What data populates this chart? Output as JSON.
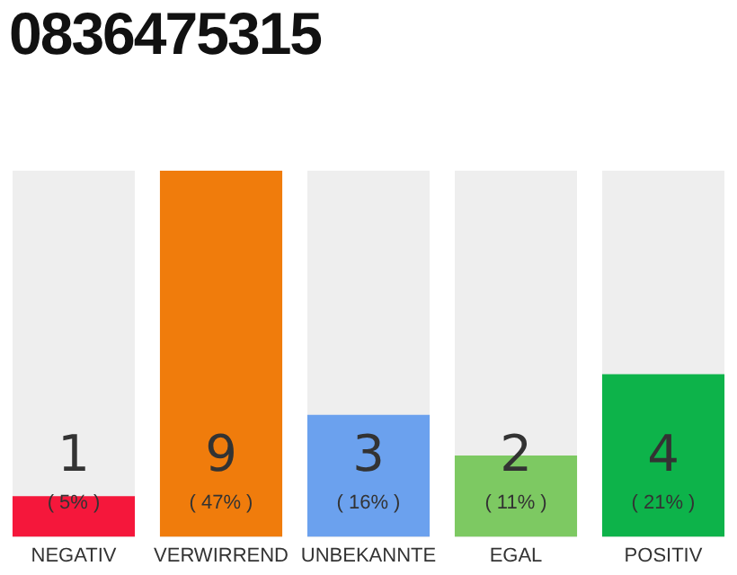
{
  "chart_data": {
    "type": "bar",
    "title": "0836475315",
    "categories": [
      "NEGATIV",
      "VERWIRREND",
      "UNBEKANNTE",
      "EGAL",
      "POSITIV"
    ],
    "values": [
      1,
      9,
      3,
      2,
      4
    ],
    "colors": [
      "#f5173b",
      "#f07c0c",
      "#6ba1ee",
      "#7dc962",
      "#0db34a"
    ],
    "ylim": [
      0,
      9
    ],
    "tick_labels": "x",
    "grid": false,
    "legend": false,
    "data_labels": true,
    "annotations": [
      "( 5% )",
      "( 47% )",
      "( 16% )",
      "( 11% )",
      "( 21% )"
    ]
  }
}
